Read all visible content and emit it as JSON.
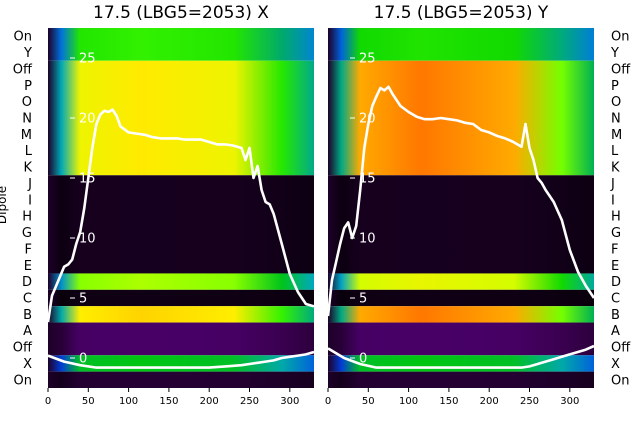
{
  "chart_data": [
    {
      "type": "heatmap",
      "title": "17.5 (LBG5=2053) X",
      "ylabel": "Dipole",
      "row_labels": [
        "On",
        "Y",
        "Off",
        "P",
        "O",
        "N",
        "M",
        "L",
        "K",
        "J",
        "I",
        "H",
        "G",
        "F",
        "E",
        "D",
        "C",
        "B",
        "A",
        "Off",
        "X",
        "On"
      ],
      "x_ticks": [
        0,
        50,
        100,
        150,
        200,
        250,
        300
      ],
      "xlim": [
        0,
        330
      ],
      "overlay_ticks": [
        25,
        20,
        15,
        10,
        5,
        0
      ],
      "overlay_ylim": [
        -2.5,
        27.5
      ],
      "colormap": "nipy_spectral",
      "bands": [
        {
          "rows": [
            "On",
            "Y"
          ],
          "level": 0.62
        },
        {
          "rows": [
            "Off",
            "P",
            "O",
            "N",
            "M",
            "L",
            "K"
          ],
          "level": 0.78
        },
        {
          "rows": [
            "J",
            "I",
            "H",
            "G",
            "F",
            "E"
          ],
          "level": 0.03
        },
        {
          "rows": [
            "D"
          ],
          "level": 0.7
        },
        {
          "rows": [
            "C"
          ],
          "level": 0.02
        },
        {
          "rows": [
            "B"
          ],
          "level": 0.8
        },
        {
          "rows": [
            "A",
            "Off"
          ],
          "level": 0.1
        },
        {
          "rows": [
            "X"
          ],
          "level": 0.55
        },
        {
          "rows": [
            "On"
          ],
          "level": 0.05
        }
      ],
      "series": [
        {
          "x": [
            0,
            5,
            10,
            15,
            20,
            25,
            30,
            35,
            40,
            45,
            50,
            55,
            60,
            65,
            70,
            75,
            80,
            85,
            90,
            100,
            110,
            120,
            130,
            140,
            150,
            160,
            170,
            180,
            190,
            200,
            210,
            220,
            230,
            240,
            245,
            250,
            255,
            260,
            265,
            270,
            275,
            280,
            290,
            300,
            310,
            320,
            330
          ],
          "y": [
            3.0,
            5.2,
            6.0,
            6.8,
            7.6,
            7.8,
            8.2,
            9.5,
            10.5,
            12.5,
            15.0,
            17.5,
            19.5,
            20.3,
            20.6,
            20.5,
            20.7,
            20.2,
            19.3,
            18.8,
            18.7,
            18.6,
            18.4,
            18.3,
            18.3,
            18.3,
            18.2,
            18.2,
            18.2,
            18.0,
            17.8,
            17.8,
            17.7,
            17.5,
            16.5,
            17.5,
            15.0,
            16.0,
            14.0,
            13.0,
            12.8,
            12.0,
            9.5,
            7.0,
            5.5,
            4.5,
            4.3
          ]
        },
        {
          "x": [
            0,
            20,
            40,
            60,
            80,
            100,
            120,
            140,
            160,
            180,
            200,
            220,
            240,
            250,
            260,
            270,
            280,
            290,
            300,
            310,
            320,
            330
          ],
          "y": [
            0.2,
            -0.3,
            -0.6,
            -0.8,
            -0.8,
            -0.8,
            -0.8,
            -0.8,
            -0.8,
            -0.8,
            -0.8,
            -0.7,
            -0.6,
            -0.5,
            -0.4,
            -0.3,
            -0.2,
            0.0,
            0.1,
            0.2,
            0.3,
            0.5
          ]
        }
      ]
    },
    {
      "type": "heatmap",
      "title": "17.5 (LBG5=2053) Y",
      "row_labels": [
        "On",
        "Y",
        "Off",
        "P",
        "O",
        "N",
        "M",
        "L",
        "K",
        "J",
        "I",
        "H",
        "G",
        "F",
        "E",
        "D",
        "C",
        "B",
        "A",
        "Off",
        "X",
        "On"
      ],
      "x_ticks": [
        0,
        50,
        100,
        150,
        200,
        250,
        300
      ],
      "xlim": [
        0,
        330
      ],
      "overlay_ticks": [
        25,
        20,
        15,
        10,
        5,
        0
      ],
      "overlay_ylim": [
        -2.5,
        27.5
      ],
      "colormap": "nipy_spectral",
      "bands": [
        {
          "rows": [
            "On",
            "Y"
          ],
          "level": 0.6
        },
        {
          "rows": [
            "Off",
            "P",
            "O",
            "N",
            "M",
            "L",
            "K"
          ],
          "level": 0.86
        },
        {
          "rows": [
            "J",
            "I",
            "H",
            "G",
            "F",
            "E"
          ],
          "level": 0.03
        },
        {
          "rows": [
            "D"
          ],
          "level": 0.75
        },
        {
          "rows": [
            "C"
          ],
          "level": 0.02
        },
        {
          "rows": [
            "B"
          ],
          "level": 0.86
        },
        {
          "rows": [
            "A",
            "Off"
          ],
          "level": 0.1
        },
        {
          "rows": [
            "X"
          ],
          "level": 0.55
        },
        {
          "rows": [
            "On"
          ],
          "level": 0.05
        }
      ],
      "series": [
        {
          "x": [
            0,
            5,
            10,
            15,
            20,
            25,
            30,
            35,
            40,
            45,
            50,
            55,
            60,
            65,
            70,
            75,
            80,
            90,
            100,
            110,
            120,
            130,
            140,
            150,
            160,
            170,
            180,
            190,
            200,
            210,
            220,
            230,
            240,
            245,
            250,
            255,
            260,
            265,
            270,
            275,
            280,
            290,
            300,
            310,
            320,
            330
          ],
          "y": [
            3.5,
            6.5,
            8.0,
            9.5,
            10.8,
            11.3,
            10.0,
            11.0,
            14.0,
            17.5,
            19.5,
            21.0,
            21.8,
            22.5,
            22.3,
            22.6,
            22.0,
            21.0,
            20.5,
            20.1,
            19.9,
            19.9,
            20.0,
            19.9,
            19.8,
            19.6,
            19.5,
            19.0,
            18.8,
            18.5,
            18.3,
            18.0,
            17.6,
            19.5,
            17.5,
            16.5,
            15.0,
            14.6,
            14.0,
            13.5,
            13.0,
            11.5,
            9.0,
            7.2,
            6.0,
            5.0
          ]
        },
        {
          "x": [
            0,
            20,
            40,
            60,
            80,
            100,
            120,
            140,
            160,
            180,
            200,
            220,
            240,
            250,
            260,
            270,
            280,
            290,
            300,
            310,
            320,
            330
          ],
          "y": [
            0.8,
            0.0,
            -0.5,
            -0.8,
            -0.8,
            -0.8,
            -0.8,
            -0.8,
            -0.8,
            -0.8,
            -0.8,
            -0.8,
            -0.8,
            -0.7,
            -0.5,
            -0.3,
            -0.1,
            0.1,
            0.3,
            0.5,
            0.7,
            1.0
          ]
        }
      ]
    }
  ]
}
